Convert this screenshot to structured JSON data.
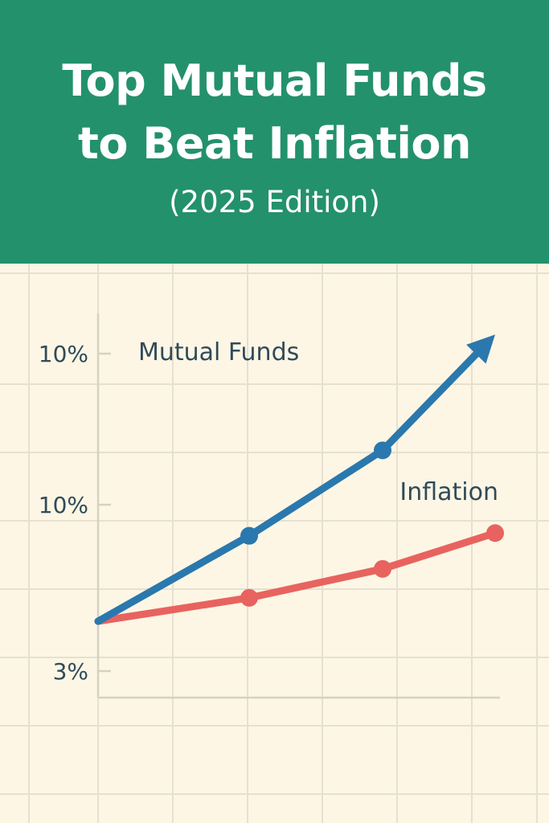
{
  "banner": {
    "title_line1": "Top Mutual Funds",
    "title_line2": "to Beat Inflation",
    "subtitle": "(2025 Edition)",
    "background_color": "#23916c"
  },
  "chart_data": {
    "type": "line",
    "title": "Top Mutual Funds to Beat Inflation",
    "subtitle": "(2025 Edition)",
    "xlabel": "",
    "ylabel": "",
    "y_tick_labels": [
      "10%",
      "10%",
      "3%"
    ],
    "grid": true,
    "series": [
      {
        "name": "Mutual Funds",
        "color": "#2a78ad",
        "points": [
          [
            0,
            0
          ],
          [
            1,
            3.1
          ],
          [
            2,
            6.2
          ],
          [
            3,
            10.4
          ]
        ],
        "marked_points": [
          1,
          2
        ],
        "end_marker": "arrow"
      },
      {
        "name": "Inflation",
        "color": "#e8635f",
        "points": [
          [
            0,
            0
          ],
          [
            1,
            0.85
          ],
          [
            2,
            1.9
          ],
          [
            3,
            3.2
          ]
        ],
        "marked_points": [
          1,
          2,
          3
        ],
        "end_marker": "dot"
      }
    ],
    "colors": {
      "background": "#fdf6e5",
      "grid": "#e6e0d0",
      "axis": "#d6d1c4",
      "text": "#2f4b5a"
    }
  }
}
